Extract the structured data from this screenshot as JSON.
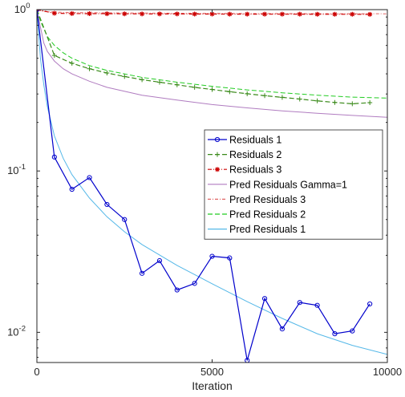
{
  "chart_data": {
    "type": "line",
    "title": "",
    "xlabel": "Iteration",
    "ylabel": "",
    "xlim": [
      0,
      10000
    ],
    "ylim": [
      0.0065,
      1
    ],
    "yscale": "log",
    "grid": false,
    "legend_position": "center-right",
    "x_ticks": [
      {
        "value": 0,
        "label": "0"
      },
      {
        "value": 5000,
        "label": "5000"
      },
      {
        "value": 10000,
        "label": "10000"
      }
    ],
    "y_ticks": [
      {
        "value": 1,
        "base": "10",
        "exp": "0"
      },
      {
        "value": 0.1,
        "base": "10",
        "exp": "-1"
      },
      {
        "value": 0.01,
        "base": "10",
        "exp": "-2"
      }
    ],
    "series": [
      {
        "name": "Residuals 1",
        "color": "#0000cc",
        "dash": "",
        "marker": "circle",
        "x": [
          0,
          500,
          1000,
          1500,
          2000,
          2500,
          3000,
          3500,
          4000,
          4500,
          5000,
          5500,
          6000,
          6500,
          7000,
          7500,
          8000,
          8500,
          9000,
          9500
        ],
        "y": [
          1.0,
          0.122,
          0.077,
          0.091,
          0.062,
          0.05,
          0.0232,
          0.0278,
          0.0183,
          0.0201,
          0.0296,
          0.0289,
          0.0067,
          0.0162,
          0.0105,
          0.0153,
          0.0147,
          0.0098,
          0.0102,
          0.015
        ]
      },
      {
        "name": "Residuals 2",
        "color": "#3a8a1a",
        "dash": "6,3",
        "marker": "plus",
        "x": [
          0,
          500,
          1000,
          1500,
          2000,
          2500,
          3000,
          3500,
          4000,
          4500,
          5000,
          5500,
          6000,
          6500,
          7000,
          7500,
          8000,
          8500,
          9000,
          9500
        ],
        "y": [
          1.0,
          0.52,
          0.465,
          0.43,
          0.405,
          0.385,
          0.368,
          0.355,
          0.342,
          0.33,
          0.32,
          0.31,
          0.301,
          0.293,
          0.286,
          0.279,
          0.272,
          0.266,
          0.261,
          0.265
        ]
      },
      {
        "name": "Residuals 3",
        "color": "#cc0000",
        "dash": "5,2,1,2",
        "marker": "star",
        "x": [
          0,
          500,
          1000,
          1500,
          2000,
          2500,
          3000,
          3500,
          4000,
          4500,
          5000,
          5500,
          6000,
          6500,
          7000,
          7500,
          8000,
          8500,
          9000,
          9500
        ],
        "y": [
          1.0,
          0.95,
          0.946,
          0.944,
          0.943,
          0.942,
          0.941,
          0.94,
          0.94,
          0.939,
          0.939,
          0.938,
          0.938,
          0.937,
          0.937,
          0.937,
          0.936,
          0.936,
          0.936,
          0.935
        ]
      },
      {
        "name": "Pred Residuals Gamma=1",
        "color": "#b07cc0",
        "dash": "",
        "marker": "none",
        "x": [
          0,
          100,
          200,
          300,
          500,
          750,
          1000,
          1500,
          2000,
          3000,
          4000,
          5000,
          6000,
          7000,
          8000,
          9000,
          10000
        ],
        "y": [
          1.0,
          0.78,
          0.62,
          0.55,
          0.48,
          0.43,
          0.4,
          0.36,
          0.33,
          0.295,
          0.275,
          0.258,
          0.246,
          0.236,
          0.228,
          0.221,
          0.215
        ]
      },
      {
        "name": "Pred Residuals 3",
        "color": "#e06464",
        "dash": "4,2,1,2",
        "marker": "none",
        "x": [
          0,
          100,
          200,
          500,
          1000,
          2000,
          4000,
          6000,
          8000,
          10000
        ],
        "y": [
          1.0,
          0.985,
          0.975,
          0.965,
          0.96,
          0.955,
          0.95,
          0.947,
          0.944,
          0.942
        ]
      },
      {
        "name": "Pred Residuals 2",
        "color": "#22cc22",
        "dash": "6,3",
        "marker": "none",
        "x": [
          0,
          100,
          300,
          500,
          750,
          1000,
          1500,
          2000,
          3000,
          4000,
          5000,
          6000,
          7000,
          8000,
          9000,
          10000
        ],
        "y": [
          1.0,
          0.85,
          0.68,
          0.6,
          0.54,
          0.5,
          0.45,
          0.42,
          0.38,
          0.355,
          0.335,
          0.318,
          0.305,
          0.295,
          0.287,
          0.283
        ]
      },
      {
        "name": "Pred Residuals 1",
        "color": "#55b8e8",
        "dash": "",
        "marker": "none",
        "x": [
          0,
          100,
          200,
          300,
          500,
          750,
          1000,
          1500,
          2000,
          2500,
          3000,
          4000,
          5000,
          6000,
          7000,
          8000,
          9000,
          10000
        ],
        "y": [
          1.0,
          0.5,
          0.34,
          0.25,
          0.165,
          0.12,
          0.095,
          0.068,
          0.052,
          0.042,
          0.035,
          0.026,
          0.02,
          0.0155,
          0.0122,
          0.0098,
          0.0083,
          0.0073
        ]
      }
    ]
  }
}
